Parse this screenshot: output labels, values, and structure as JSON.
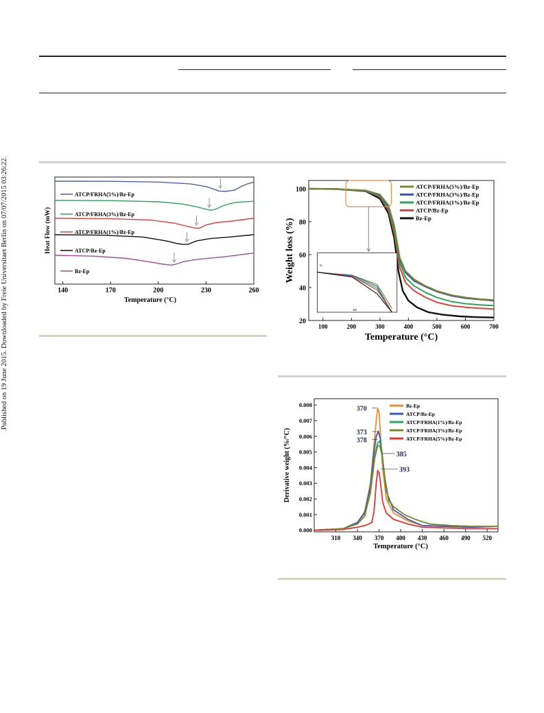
{
  "side_note": "Published on 19 June 2015. Downloaded by Freie Universitaet Berlin on 07/07/2015 03:26:22.",
  "chart_data": [
    {
      "type": "line",
      "title": "",
      "xlabel": "Temperature (°C)",
      "ylabel": "Heat Flow (mW)",
      "xlim": [
        135,
        260
      ],
      "xticks": [
        140,
        170,
        200,
        230,
        260
      ],
      "grid": false,
      "legend": "inline labels on each curve",
      "series": [
        {
          "name": "ATCP/FRHA(5%)/Bz-Ep",
          "color": "#4b5fae",
          "offset": 0,
          "x": [
            135,
            170,
            200,
            220,
            230,
            235,
            238,
            242,
            248,
            252,
            256,
            260
          ],
          "y": [
            0,
            0.003,
            0.02,
            0.06,
            0.12,
            0.18,
            0.22,
            0.23,
            0.2,
            0.12,
            0.06,
            0.02
          ],
          "peak": 239
        },
        {
          "name": "ATCP/FRHA(3%)/Bz-Ep",
          "color": "#2aa65a",
          "offset": 1,
          "x": [
            135,
            170,
            200,
            215,
            225,
            230,
            233,
            236,
            240,
            245,
            250,
            260
          ],
          "y": [
            0,
            0.005,
            0.03,
            0.08,
            0.15,
            0.2,
            0.22,
            0.2,
            0.13,
            0.07,
            0.04,
            0.02
          ],
          "peak": 232
        },
        {
          "name": "ATCP/FRHA(1%)/Bz-Ep",
          "color": "#e2403a",
          "offset": 2,
          "x": [
            135,
            170,
            195,
            210,
            218,
            223,
            226,
            230,
            236,
            245,
            260
          ],
          "y": [
            0,
            0.01,
            0.04,
            0.11,
            0.18,
            0.22,
            0.22,
            0.15,
            0.1,
            0.07,
            0.0
          ],
          "peak": 224
        },
        {
          "name": "ATCP/Bz-Ep",
          "color": "#111111",
          "offset": 3,
          "x": [
            135,
            165,
            190,
            205,
            212,
            216,
            219,
            224,
            232,
            245,
            260
          ],
          "y": [
            0,
            0.01,
            0.05,
            0.14,
            0.2,
            0.22,
            0.21,
            0.14,
            0.09,
            0.05,
            0.0
          ],
          "peak": 218
        },
        {
          "name": "Bz-Ep",
          "color": "#a14aa0",
          "offset": 4,
          "x": [
            135,
            160,
            180,
            195,
            203,
            208,
            211,
            216,
            225,
            240,
            260
          ],
          "y": [
            0,
            0.02,
            0.07,
            0.15,
            0.2,
            0.22,
            0.2,
            0.14,
            0.09,
            0.04,
            -0.05
          ],
          "peak": 210
        }
      ]
    },
    {
      "type": "line",
      "title": "",
      "xlabel": "Temperature (°C)",
      "ylabel": "Weight loss (%)",
      "xlim": [
        50,
        700
      ],
      "ylim": [
        20,
        105
      ],
      "xticks": [
        100,
        200,
        300,
        400,
        500,
        600,
        700
      ],
      "yticks": [
        20,
        40,
        60,
        80,
        100
      ],
      "grid": false,
      "legend": "top-right",
      "inset": {
        "x_tick": "400",
        "y_tick": "70"
      },
      "series": [
        {
          "name": "ATCP/FRHA(5%)/Bz-Ep",
          "color": "#7b8a2e",
          "x": [
            50,
            150,
            250,
            300,
            330,
            350,
            370,
            390,
            420,
            460,
            500,
            550,
            600,
            650,
            700
          ],
          "y": [
            100,
            99.8,
            99,
            96.5,
            90,
            78,
            58,
            50,
            45,
            41,
            38,
            35.5,
            34,
            33,
            32.5
          ]
        },
        {
          "name": "ATCP/FRHA(3%)/Bz-Ep",
          "color": "#3d56b5",
          "x": [
            50,
            150,
            250,
            300,
            330,
            350,
            370,
            390,
            420,
            460,
            500,
            550,
            600,
            650,
            700
          ],
          "y": [
            100,
            99.8,
            99,
            96,
            89,
            77,
            57,
            49,
            44,
            40.5,
            37.5,
            35,
            33.5,
            32.7,
            32
          ]
        },
        {
          "name": "ATCP/FRHA(1%)/Bz-Ep",
          "color": "#2aa65a",
          "x": [
            50,
            150,
            250,
            300,
            330,
            350,
            370,
            390,
            420,
            460,
            500,
            550,
            600,
            650,
            700
          ],
          "y": [
            100,
            99.8,
            98.8,
            95.5,
            88,
            75,
            55,
            46,
            41,
            37,
            34,
            31.5,
            30.2,
            29.5,
            29
          ]
        },
        {
          "name": "ATCP/Bz-Ep",
          "color": "#e2403a",
          "x": [
            50,
            150,
            250,
            300,
            330,
            350,
            370,
            390,
            420,
            460,
            500,
            550,
            600,
            650,
            700
          ],
          "y": [
            100,
            99.8,
            98.7,
            95,
            87,
            73,
            52,
            43,
            38,
            34,
            31,
            29,
            28,
            27.4,
            27
          ]
        },
        {
          "name": "Bz-Ep",
          "color": "#111111",
          "x": [
            50,
            150,
            250,
            300,
            330,
            350,
            365,
            380,
            400,
            430,
            470,
            520,
            580,
            640,
            700
          ],
          "y": [
            100,
            99.8,
            98.5,
            94,
            85,
            70,
            50,
            38,
            32,
            28,
            25,
            23.5,
            22.5,
            22,
            21.8
          ]
        }
      ]
    },
    {
      "type": "line",
      "title": "",
      "xlabel": "Temperature (°C)",
      "ylabel": "Derivative weight (%/°C)",
      "xlim": [
        280,
        535
      ],
      "ylim": [
        -0.0001,
        0.0084
      ],
      "xticks": [
        310,
        340,
        370,
        400,
        430,
        460,
        490,
        520
      ],
      "yticks": [
        0.0,
        0.001,
        0.002,
        0.003,
        0.004,
        0.005,
        0.006,
        0.007,
        0.008
      ],
      "ytick_labels": [
        "0.000",
        "0.001",
        "0.002",
        "0.003",
        "0.004",
        "0.005",
        "0.006",
        "0.007",
        "0.008"
      ],
      "grid": false,
      "legend": "top-right",
      "annotations": [
        {
          "label": "370",
          "x": 370,
          "y": 0.0078
        },
        {
          "label": "373",
          "x": 373,
          "y": 0.0063
        },
        {
          "label": "378",
          "x": 378,
          "y": 0.0058
        },
        {
          "label": "385",
          "x": 385,
          "y": 0.0049
        },
        {
          "label": "393",
          "x": 393,
          "y": 0.0039
        }
      ],
      "series": [
        {
          "name": "Bz-Ep",
          "color": "#f08a30",
          "x": [
            280,
            320,
            340,
            350,
            358,
            363,
            366,
            368,
            370,
            372,
            375,
            380,
            390,
            410,
            430,
            460,
            500,
            535
          ],
          "y": [
            0,
            0.0001,
            0.0005,
            0.0012,
            0.003,
            0.0055,
            0.007,
            0.0078,
            0.0075,
            0.006,
            0.004,
            0.002,
            0.0011,
            0.0006,
            0.0003,
            0.00025,
            0.0002,
            0.00025
          ]
        },
        {
          "name": "ATCP/Bz-Ep",
          "color": "#3d56b5",
          "x": [
            280,
            320,
            340,
            350,
            358,
            363,
            366,
            369,
            372,
            375,
            380,
            390,
            410,
            430,
            460,
            500,
            535
          ],
          "y": [
            0,
            0.0001,
            0.0005,
            0.0011,
            0.0028,
            0.005,
            0.006,
            0.0063,
            0.0058,
            0.0044,
            0.0025,
            0.0013,
            0.0007,
            0.0003,
            0.00025,
            0.0002,
            0.00025
          ]
        },
        {
          "name": "ATCP/FRHA(1%)/Bz-Ep",
          "color": "#2aa65a",
          "x": [
            280,
            320,
            340,
            350,
            358,
            364,
            368,
            371,
            374,
            378,
            383,
            390,
            405,
            420,
            440,
            470,
            500,
            535
          ],
          "y": [
            0,
            0.0001,
            0.0004,
            0.0009,
            0.0025,
            0.0048,
            0.0056,
            0.0057,
            0.005,
            0.0034,
            0.002,
            0.0015,
            0.001,
            0.0007,
            0.0004,
            0.0003,
            0.00025,
            0.00025
          ]
        },
        {
          "name": "ATCP/FRHA(3%)/Bz-Ep",
          "color": "#7b8a2e",
          "x": [
            280,
            320,
            340,
            350,
            358,
            364,
            368,
            371,
            374,
            378,
            383,
            390,
            405,
            420,
            440,
            470,
            500,
            535
          ],
          "y": [
            0,
            0.0001,
            0.0004,
            0.0009,
            0.0024,
            0.0046,
            0.0054,
            0.0054,
            0.0048,
            0.0033,
            0.0019,
            0.0015,
            0.001,
            0.0007,
            0.0004,
            0.0003,
            0.00025,
            0.00025
          ]
        },
        {
          "name": "ATCP/FRHA(5%)/Bz-Ep",
          "color": "#e8322f",
          "x": [
            280,
            320,
            340,
            350,
            356,
            360,
            363,
            366,
            368,
            370,
            372,
            375,
            380,
            390,
            410,
            430,
            460,
            500,
            535
          ],
          "y": [
            0,
            5e-05,
            0.0002,
            0.0003,
            0.0004,
            0.0005,
            0.0012,
            0.003,
            0.0038,
            0.0037,
            0.003,
            0.0018,
            0.0011,
            0.0007,
            0.0004,
            0.0002,
            0.00015,
            0.0001,
            0.0001
          ]
        }
      ]
    }
  ]
}
